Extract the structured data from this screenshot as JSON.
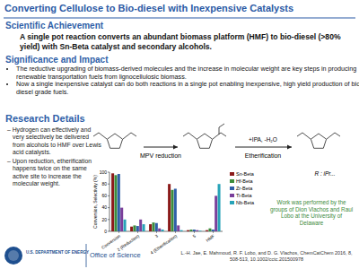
{
  "slide": {
    "title": "Converting Cellulose to Bio-diesel with Inexpensive Catalysts",
    "achievement": {
      "heading": "Scientific Achievement",
      "text": "A single pot reaction converts an abundant biomass platform (HMF) to bio-diesel (>80% yield) with Sn-Beta catalyst and secondary alcohols."
    },
    "significance": {
      "heading": "Significance and Impact",
      "items": [
        "The reductive upgrading of biomass-derived molecules and the increase in molecular weight are key steps in producing renewable transportation fuels from lignocellulosic biomass.",
        "Now a single inexpensive catalyst can do both reactions in a single pot enabling inexpensive, high yield production of bio-diesel grade fuels."
      ]
    },
    "details": {
      "heading": "Research Details",
      "items": [
        "– Hydrogen can effectively and very selectively be delivered from alcohols to HMF over Lewis acid catalysts.",
        "– Upon reduction, etherification happens twice on the same active site to increase the molecular weight."
      ]
    },
    "scheme": {
      "step1": "MPV reduction",
      "step2_reagents": "+IPA, -H₂O",
      "step2": "Etherification",
      "r_group": "R : iPr..."
    },
    "credit": "Work was performed by the groups of Dion Vlachos and Raul Lobo at the University of Delaware",
    "citation": "L.-H. Jae, E. Mahmoud, R. F. Lobo, and D. G. Vlachos, ChemCatChem 2016, 8, 508-513, 10.1002/cctc.201500978",
    "footer": {
      "agency": "U.S. DEPARTMENT OF ENERGY",
      "office": "Office of Science"
    }
  },
  "chart_data": {
    "type": "bar",
    "y_label": "Conversion, Selectivity (%)",
    "categories": [
      "Conversion",
      "2 (Reduction)",
      "3",
      "4 (Etherification)",
      "5",
      "HMF"
    ],
    "series": [
      {
        "name": "Sn-Beta",
        "color": "#8b1a1a",
        "values": [
          98,
          8,
          12,
          80,
          2,
          2
        ]
      },
      {
        "name": "Hf-Beta",
        "color": "#3c8c3c",
        "values": [
          95,
          10,
          15,
          70,
          3,
          5
        ]
      },
      {
        "name": "Zr-Beta",
        "color": "#2f5fa8",
        "values": [
          97,
          9,
          14,
          72,
          3,
          3
        ]
      },
      {
        "name": "Ti-Beta",
        "color": "#7a3f9a",
        "values": [
          40,
          20,
          5,
          10,
          2,
          60
        ]
      },
      {
        "name": "Nb-Beta",
        "color": "#27a3b8",
        "values": [
          20,
          12,
          3,
          2,
          1,
          80
        ]
      }
    ],
    "ylim": [
      0,
      100
    ],
    "yticks": [
      0,
      20,
      40,
      60,
      80,
      100
    ],
    "grid": false,
    "legend": "right"
  }
}
